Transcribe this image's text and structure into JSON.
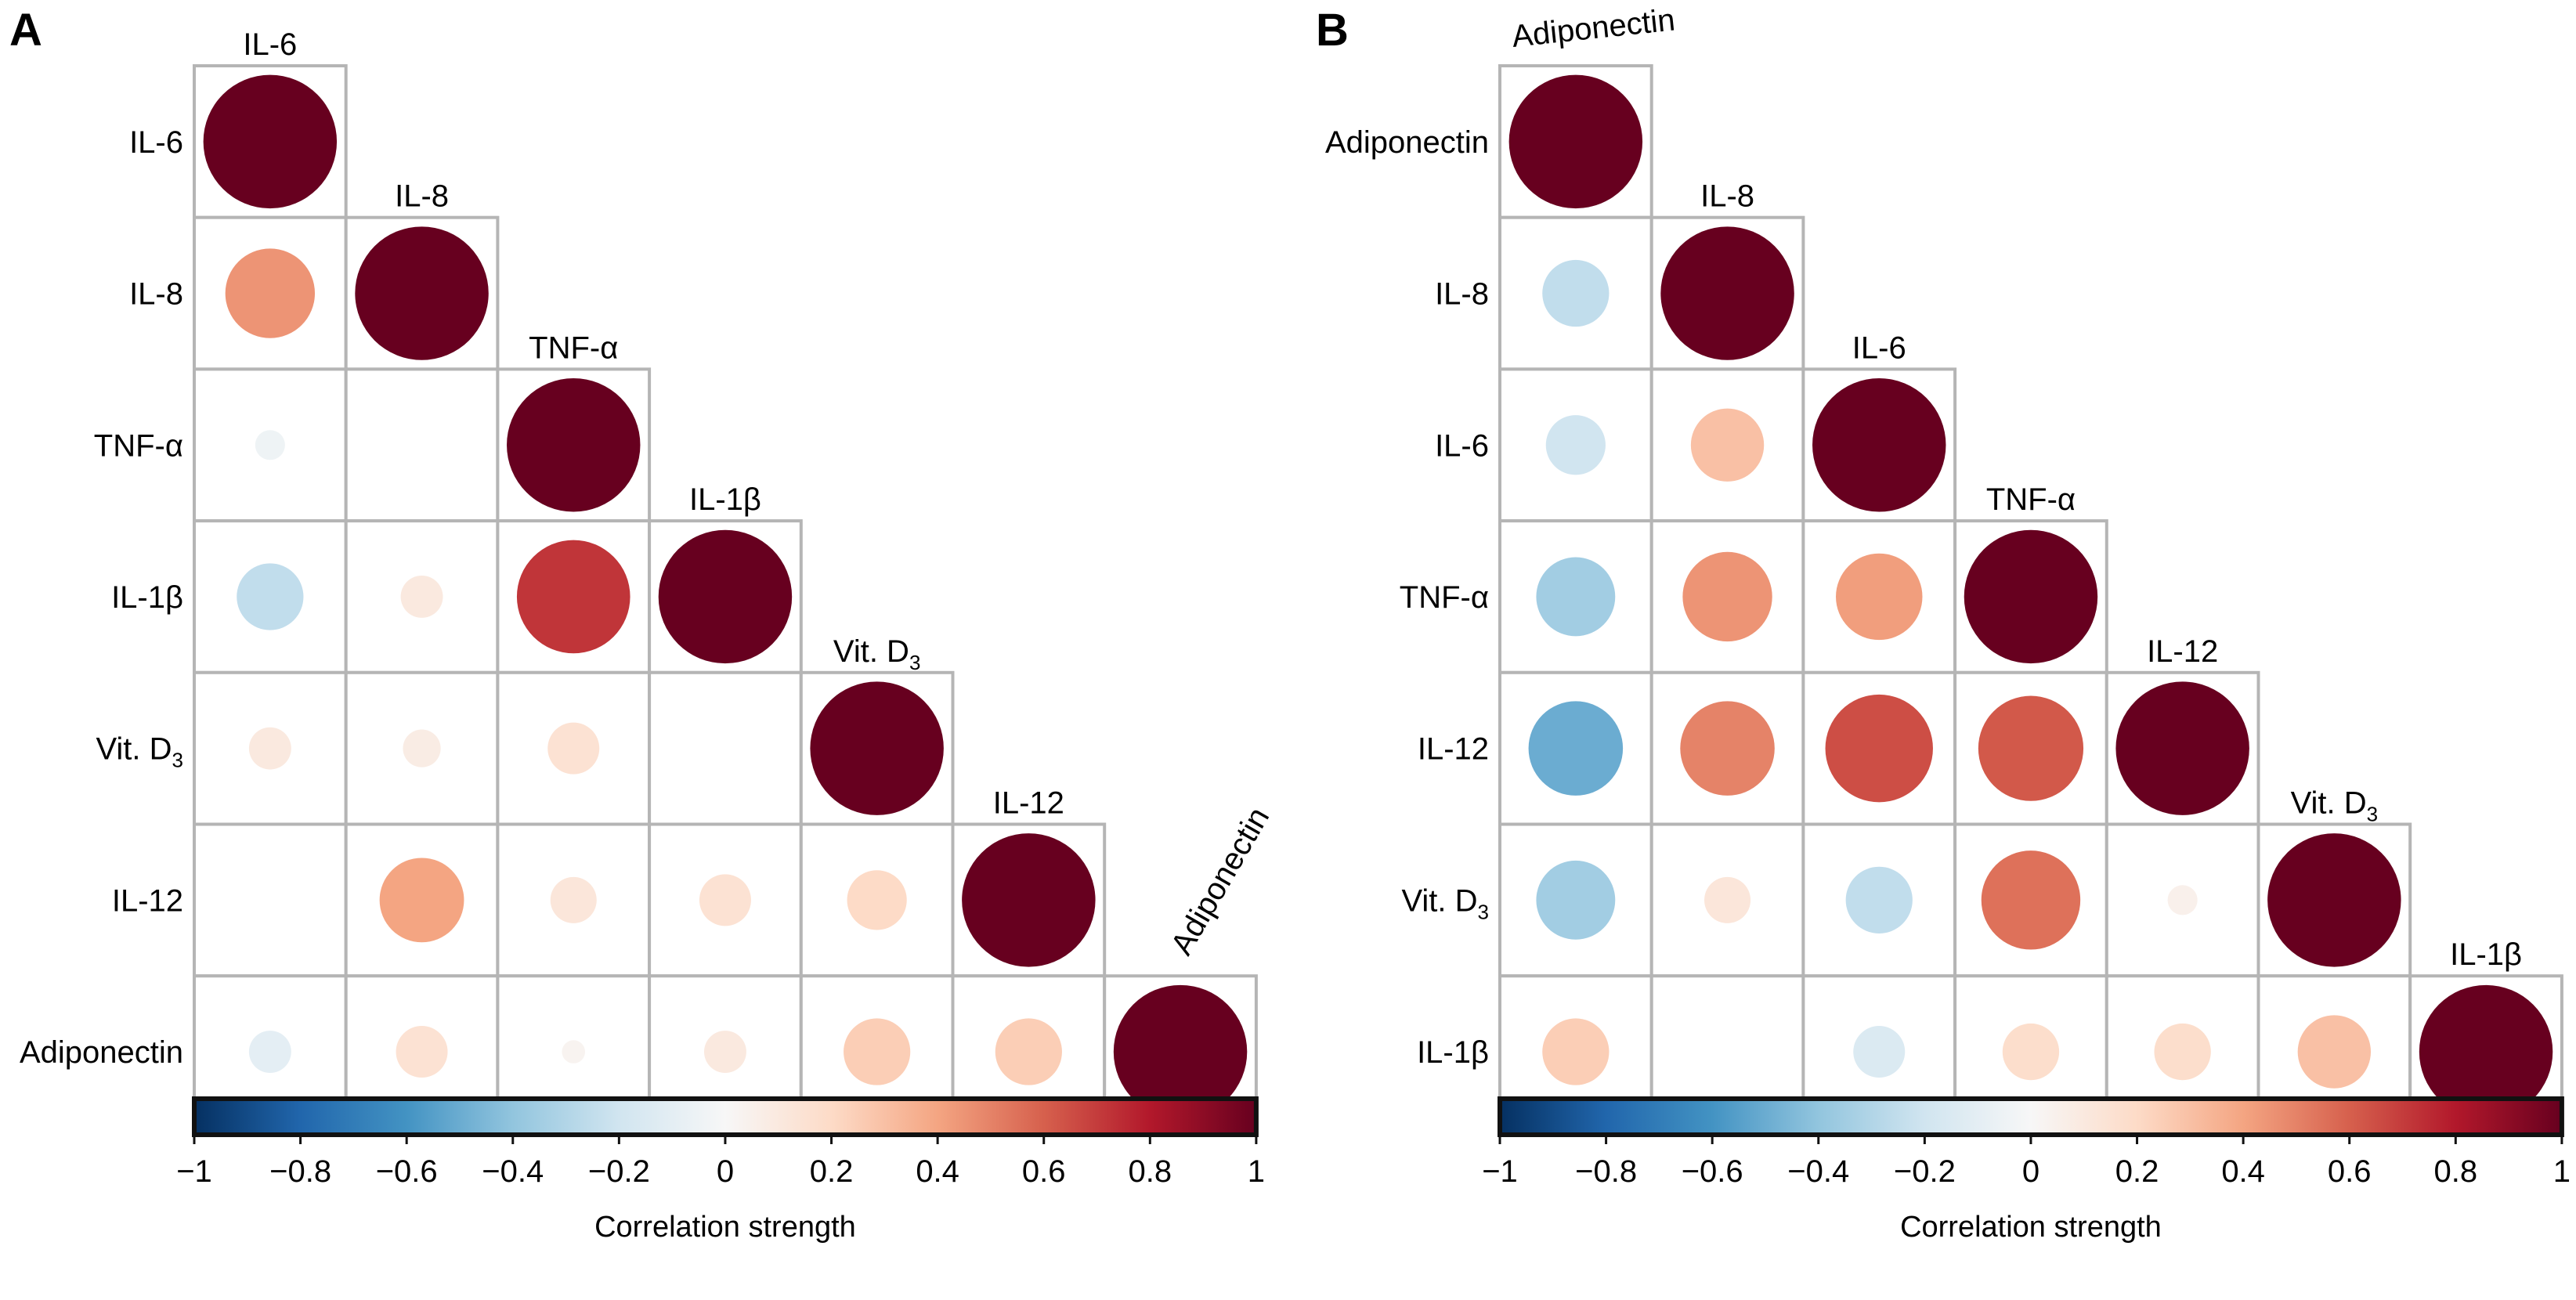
{
  "chart_data": [
    {
      "type": "heatmap",
      "subtype": "correlation-circle-lower-triangle",
      "panel_label": "A",
      "variables": [
        "IL-6",
        "IL-8",
        "TNF-α",
        "IL-1β",
        "Vit. D3",
        "IL-12",
        "Adiponectin"
      ],
      "variable_labels": [
        {
          "main": "IL-6",
          "sub": ""
        },
        {
          "main": "IL-8",
          "sub": ""
        },
        {
          "main": "TNF-α",
          "sub": ""
        },
        {
          "main": "IL-1β",
          "sub": ""
        },
        {
          "main": "Vit. D",
          "sub": "3"
        },
        {
          "main": "IL-12",
          "sub": ""
        },
        {
          "main": "Adiponectin",
          "sub": ""
        }
      ],
      "rotated_top_labels": [
        "Adiponectin"
      ],
      "matrix": [
        [
          1.0,
          null,
          null,
          null,
          null,
          null,
          null
        ],
        [
          0.45,
          1.0,
          null,
          null,
          null,
          null,
          null
        ],
        [
          -0.05,
          0.0,
          1.0,
          null,
          null,
          null,
          null
        ],
        [
          -0.25,
          0.1,
          0.72,
          1.0,
          null,
          null,
          null
        ],
        [
          0.1,
          0.08,
          0.15,
          0.0,
          1.0,
          null,
          null
        ],
        [
          0.0,
          0.4,
          0.12,
          0.15,
          0.2,
          1.0,
          null
        ],
        [
          -0.1,
          0.15,
          0.03,
          0.1,
          0.25,
          0.25,
          1.0
        ]
      ],
      "colorbar": {
        "range": [
          -1,
          1
        ],
        "ticks": [
          "−1",
          "−0.8",
          "−0.6",
          "−0.4",
          "−0.2",
          "0",
          "0.2",
          "0.4",
          "0.6",
          "0.8",
          "1"
        ],
        "tick_values": [
          -1,
          -0.8,
          -0.6,
          -0.4,
          -0.2,
          0,
          0.2,
          0.4,
          0.6,
          0.8,
          1
        ],
        "title": "Correlation strength",
        "colormap": [
          "#053061",
          "#2166ac",
          "#4393c3",
          "#92c5de",
          "#d1e5f0",
          "#f7f7f7",
          "#fddbc7",
          "#f4a582",
          "#d6604d",
          "#b2182b",
          "#67001f"
        ]
      }
    },
    {
      "type": "heatmap",
      "subtype": "correlation-circle-lower-triangle",
      "panel_label": "B",
      "variables": [
        "Adiponectin",
        "IL-8",
        "IL-6",
        "TNF-α",
        "IL-12",
        "Vit. D3",
        "IL-1β"
      ],
      "variable_labels": [
        {
          "main": "Adiponectin",
          "sub": ""
        },
        {
          "main": "IL-8",
          "sub": ""
        },
        {
          "main": "IL-6",
          "sub": ""
        },
        {
          "main": "TNF-α",
          "sub": ""
        },
        {
          "main": "IL-12",
          "sub": ""
        },
        {
          "main": "Vit. D",
          "sub": "3"
        },
        {
          "main": "IL-1β",
          "sub": ""
        }
      ],
      "rotated_top_labels": [
        "Adiponectin"
      ],
      "matrix": [
        [
          1.0,
          null,
          null,
          null,
          null,
          null,
          null
        ],
        [
          -0.25,
          1.0,
          null,
          null,
          null,
          null,
          null
        ],
        [
          -0.2,
          0.3,
          1.0,
          null,
          null,
          null,
          null
        ],
        [
          -0.35,
          0.45,
          0.42,
          1.0,
          null,
          null,
          null
        ],
        [
          -0.5,
          0.5,
          0.65,
          0.62,
          1.0,
          null,
          null
        ],
        [
          -0.35,
          0.12,
          -0.25,
          0.55,
          0.05,
          1.0,
          null
        ],
        [
          0.25,
          0.0,
          -0.15,
          0.18,
          0.18,
          0.3,
          1.0
        ]
      ],
      "colorbar": {
        "range": [
          -1,
          1
        ],
        "ticks": [
          "−1",
          "−0.8",
          "−0.6",
          "−0.4",
          "−0.2",
          "0",
          "0.2",
          "0.4",
          "0.6",
          "0.8",
          "1"
        ],
        "tick_values": [
          -1,
          -0.8,
          -0.6,
          -0.4,
          -0.2,
          0,
          0.2,
          0.4,
          0.6,
          0.8,
          1
        ],
        "title": "Correlation strength",
        "colormap": [
          "#053061",
          "#2166ac",
          "#4393c3",
          "#92c5de",
          "#d1e5f0",
          "#f7f7f7",
          "#fddbc7",
          "#f4a582",
          "#d6604d",
          "#b2182b",
          "#67001f"
        ]
      }
    }
  ]
}
